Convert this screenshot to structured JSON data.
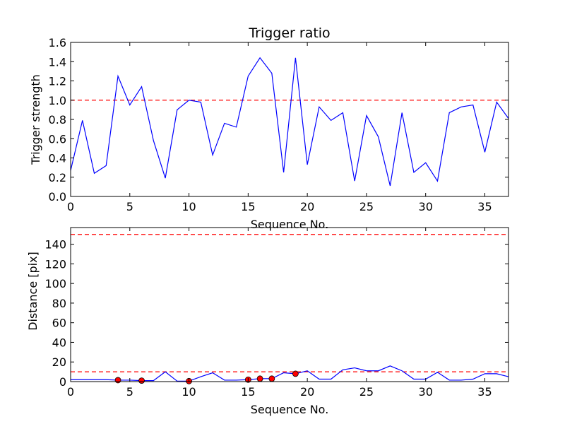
{
  "chart_data": [
    {
      "type": "line",
      "title": "Trigger ratio",
      "xlabel": "Sequence No.",
      "ylabel": "Trigger strength",
      "xlim": [
        0,
        37
      ],
      "ylim": [
        0,
        1.6
      ],
      "xticks": [
        0,
        5,
        10,
        15,
        20,
        25,
        30,
        35
      ],
      "yticks": [
        0.0,
        0.2,
        0.4,
        0.6,
        0.8,
        1.0,
        1.2,
        1.4,
        1.6
      ],
      "ytick_labels": [
        "0.0",
        "0.2",
        "0.4",
        "0.6",
        "0.8",
        "1.0",
        "1.2",
        "1.4",
        "1.6"
      ],
      "grid": false,
      "series": [
        {
          "color": "#0000ff",
          "x": [
            0,
            1,
            2,
            3,
            4,
            5,
            6,
            7,
            8,
            9,
            10,
            11,
            12,
            13,
            14,
            15,
            16,
            17,
            18,
            19,
            20,
            21,
            22,
            23,
            24,
            25,
            26,
            27,
            28,
            29,
            30,
            31,
            32,
            33,
            34,
            35,
            36,
            37
          ],
          "values": [
            0.27,
            0.79,
            0.24,
            0.32,
            1.25,
            0.95,
            1.14,
            0.58,
            0.19,
            0.9,
            1.0,
            0.98,
            0.43,
            0.76,
            0.72,
            1.25,
            1.44,
            1.28,
            0.25,
            1.44,
            0.33,
            0.93,
            0.79,
            0.87,
            0.16,
            0.84,
            0.62,
            0.11,
            0.87,
            0.25,
            0.35,
            0.16,
            0.87,
            0.93,
            0.95,
            0.46,
            0.98,
            0.81
          ]
        }
      ],
      "reference_lines": [
        {
          "y": 1.0,
          "color": "#ff0000",
          "style": "dashed"
        }
      ]
    },
    {
      "type": "line",
      "title": "",
      "xlabel": "Sequence No.",
      "ylabel": "Distance [pix]",
      "xlim": [
        0,
        37
      ],
      "ylim": [
        0,
        157
      ],
      "xticks": [
        0,
        5,
        10,
        15,
        20,
        25,
        30,
        35
      ],
      "yticks": [
        0,
        20,
        40,
        60,
        80,
        100,
        120,
        140
      ],
      "ytick_labels": [
        "0",
        "20",
        "40",
        "60",
        "80",
        "100",
        "120",
        "140"
      ],
      "grid": false,
      "series": [
        {
          "color": "#0000ff",
          "x": [
            0,
            1,
            2,
            3,
            4,
            5,
            6,
            7,
            8,
            9,
            10,
            11,
            12,
            13,
            14,
            15,
            16,
            17,
            18,
            19,
            20,
            21,
            22,
            23,
            24,
            25,
            26,
            27,
            28,
            29,
            30,
            31,
            32,
            33,
            34,
            35,
            36,
            37
          ],
          "values": [
            2,
            2,
            2,
            2,
            1.5,
            1.5,
            1,
            1,
            10,
            0.5,
            0.5,
            5,
            9,
            1.5,
            1.5,
            2,
            3,
            3,
            9,
            8,
            11,
            2.5,
            2.5,
            12,
            14,
            11,
            11,
            16,
            11,
            2.5,
            2.5,
            9.5,
            1.5,
            1.5,
            2.5,
            8,
            8,
            5
          ]
        }
      ],
      "highlight_points": {
        "color": "#ff0000",
        "x": [
          4,
          6,
          10,
          15,
          16,
          17,
          19
        ],
        "values": [
          1.5,
          1,
          0.5,
          2,
          3,
          3,
          8
        ]
      },
      "reference_lines": [
        {
          "y": 150,
          "color": "#ff0000",
          "style": "dashed"
        },
        {
          "y": 10,
          "color": "#ff0000",
          "style": "dashed"
        }
      ]
    }
  ]
}
